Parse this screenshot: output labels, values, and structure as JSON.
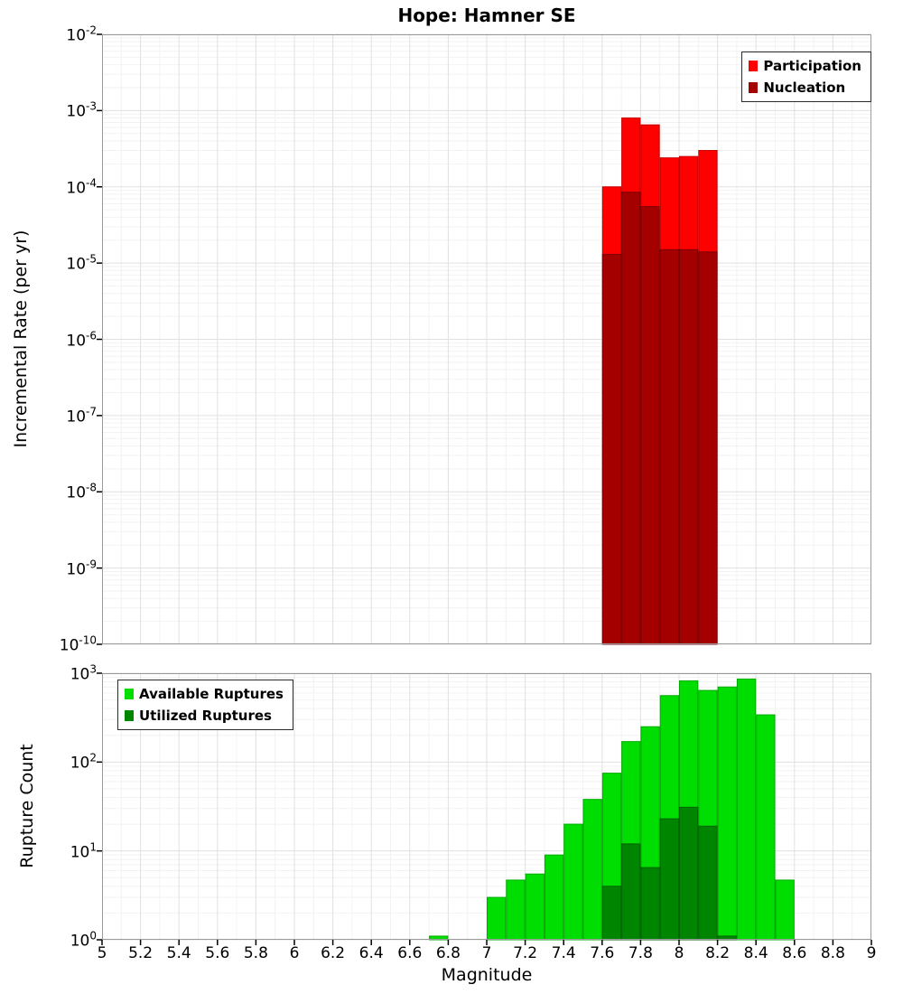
{
  "title": "Hope: Hamner SE",
  "x_axis": {
    "label": "Magnitude",
    "tick_labels": [
      "5",
      "5.2",
      "5.4",
      "5.6",
      "5.8",
      "6",
      "6.2",
      "6.4",
      "6.6",
      "6.8",
      "7",
      "7.2",
      "7.4",
      "7.6",
      "7.8",
      "8",
      "8.2",
      "8.4",
      "8.6",
      "8.8",
      "9"
    ]
  },
  "top_panel": {
    "y_label": "Incremental Rate (per yr)",
    "y_tick_exponents": [
      -2,
      -3,
      -4,
      -5,
      -6,
      -7,
      -8,
      -9,
      -10
    ],
    "legend": [
      {
        "label": "Participation",
        "color": "#ff0000"
      },
      {
        "label": "Nucleation",
        "color": "#a40000"
      }
    ]
  },
  "bottom_panel": {
    "y_label": "Rupture Count",
    "y_tick_exponents": [
      3,
      2,
      1,
      0
    ],
    "legend": [
      {
        "label": "Available Ruptures",
        "color": "#00dd00"
      },
      {
        "label": "Utilized Ruptures",
        "color": "#008500"
      }
    ]
  },
  "chart_data": [
    {
      "type": "bar",
      "title": "Hope: Hamner SE",
      "xlabel": "Magnitude",
      "ylabel": "Incremental Rate (per yr)",
      "x_range": [
        5,
        9
      ],
      "y_scale": "log",
      "y_range": [
        1e-10,
        0.01
      ],
      "bin_width": 0.1,
      "grid": true,
      "legend_position": "top-right",
      "series": [
        {
          "name": "Participation",
          "color": "#ff0000",
          "edge": "#c40000",
          "bin_centers": [
            7.65,
            7.75,
            7.85,
            7.95,
            8.05,
            8.15
          ],
          "values": [
            0.0001,
            0.0008,
            0.00065,
            0.00024,
            0.00025,
            0.0003
          ]
        },
        {
          "name": "Nucleation",
          "color": "#a40000",
          "edge": "#7a0000",
          "bin_centers": [
            7.65,
            7.75,
            7.85,
            7.95,
            8.05,
            8.15
          ],
          "values": [
            1.3e-05,
            8.5e-05,
            5.5e-05,
            1.5e-05,
            1.5e-05,
            1.4e-05
          ]
        }
      ]
    },
    {
      "type": "bar",
      "title": "",
      "xlabel": "Magnitude",
      "ylabel": "Rupture Count",
      "x_range": [
        5,
        9
      ],
      "y_scale": "log",
      "y_range": [
        1,
        1000
      ],
      "bin_width": 0.1,
      "grid": true,
      "legend_position": "top-left",
      "series": [
        {
          "name": "Available Ruptures",
          "color": "#00dd00",
          "edge": "#00ab00",
          "bin_centers": [
            6.75,
            7.05,
            7.15,
            7.25,
            7.35,
            7.45,
            7.55,
            7.65,
            7.75,
            7.85,
            7.95,
            8.05,
            8.15,
            8.25,
            8.35,
            8.45,
            8.55
          ],
          "values": [
            1.1,
            3,
            4.7,
            5.5,
            9,
            20,
            38,
            75,
            170,
            250,
            560,
            820,
            640,
            700,
            860,
            340,
            4.7
          ]
        },
        {
          "name": "Utilized Ruptures",
          "color": "#008500",
          "edge": "#006400",
          "bin_centers": [
            7.65,
            7.75,
            7.85,
            7.95,
            8.05,
            8.15,
            8.25
          ],
          "values": [
            4,
            12,
            6.5,
            23,
            31,
            19,
            1.1
          ]
        }
      ]
    }
  ]
}
